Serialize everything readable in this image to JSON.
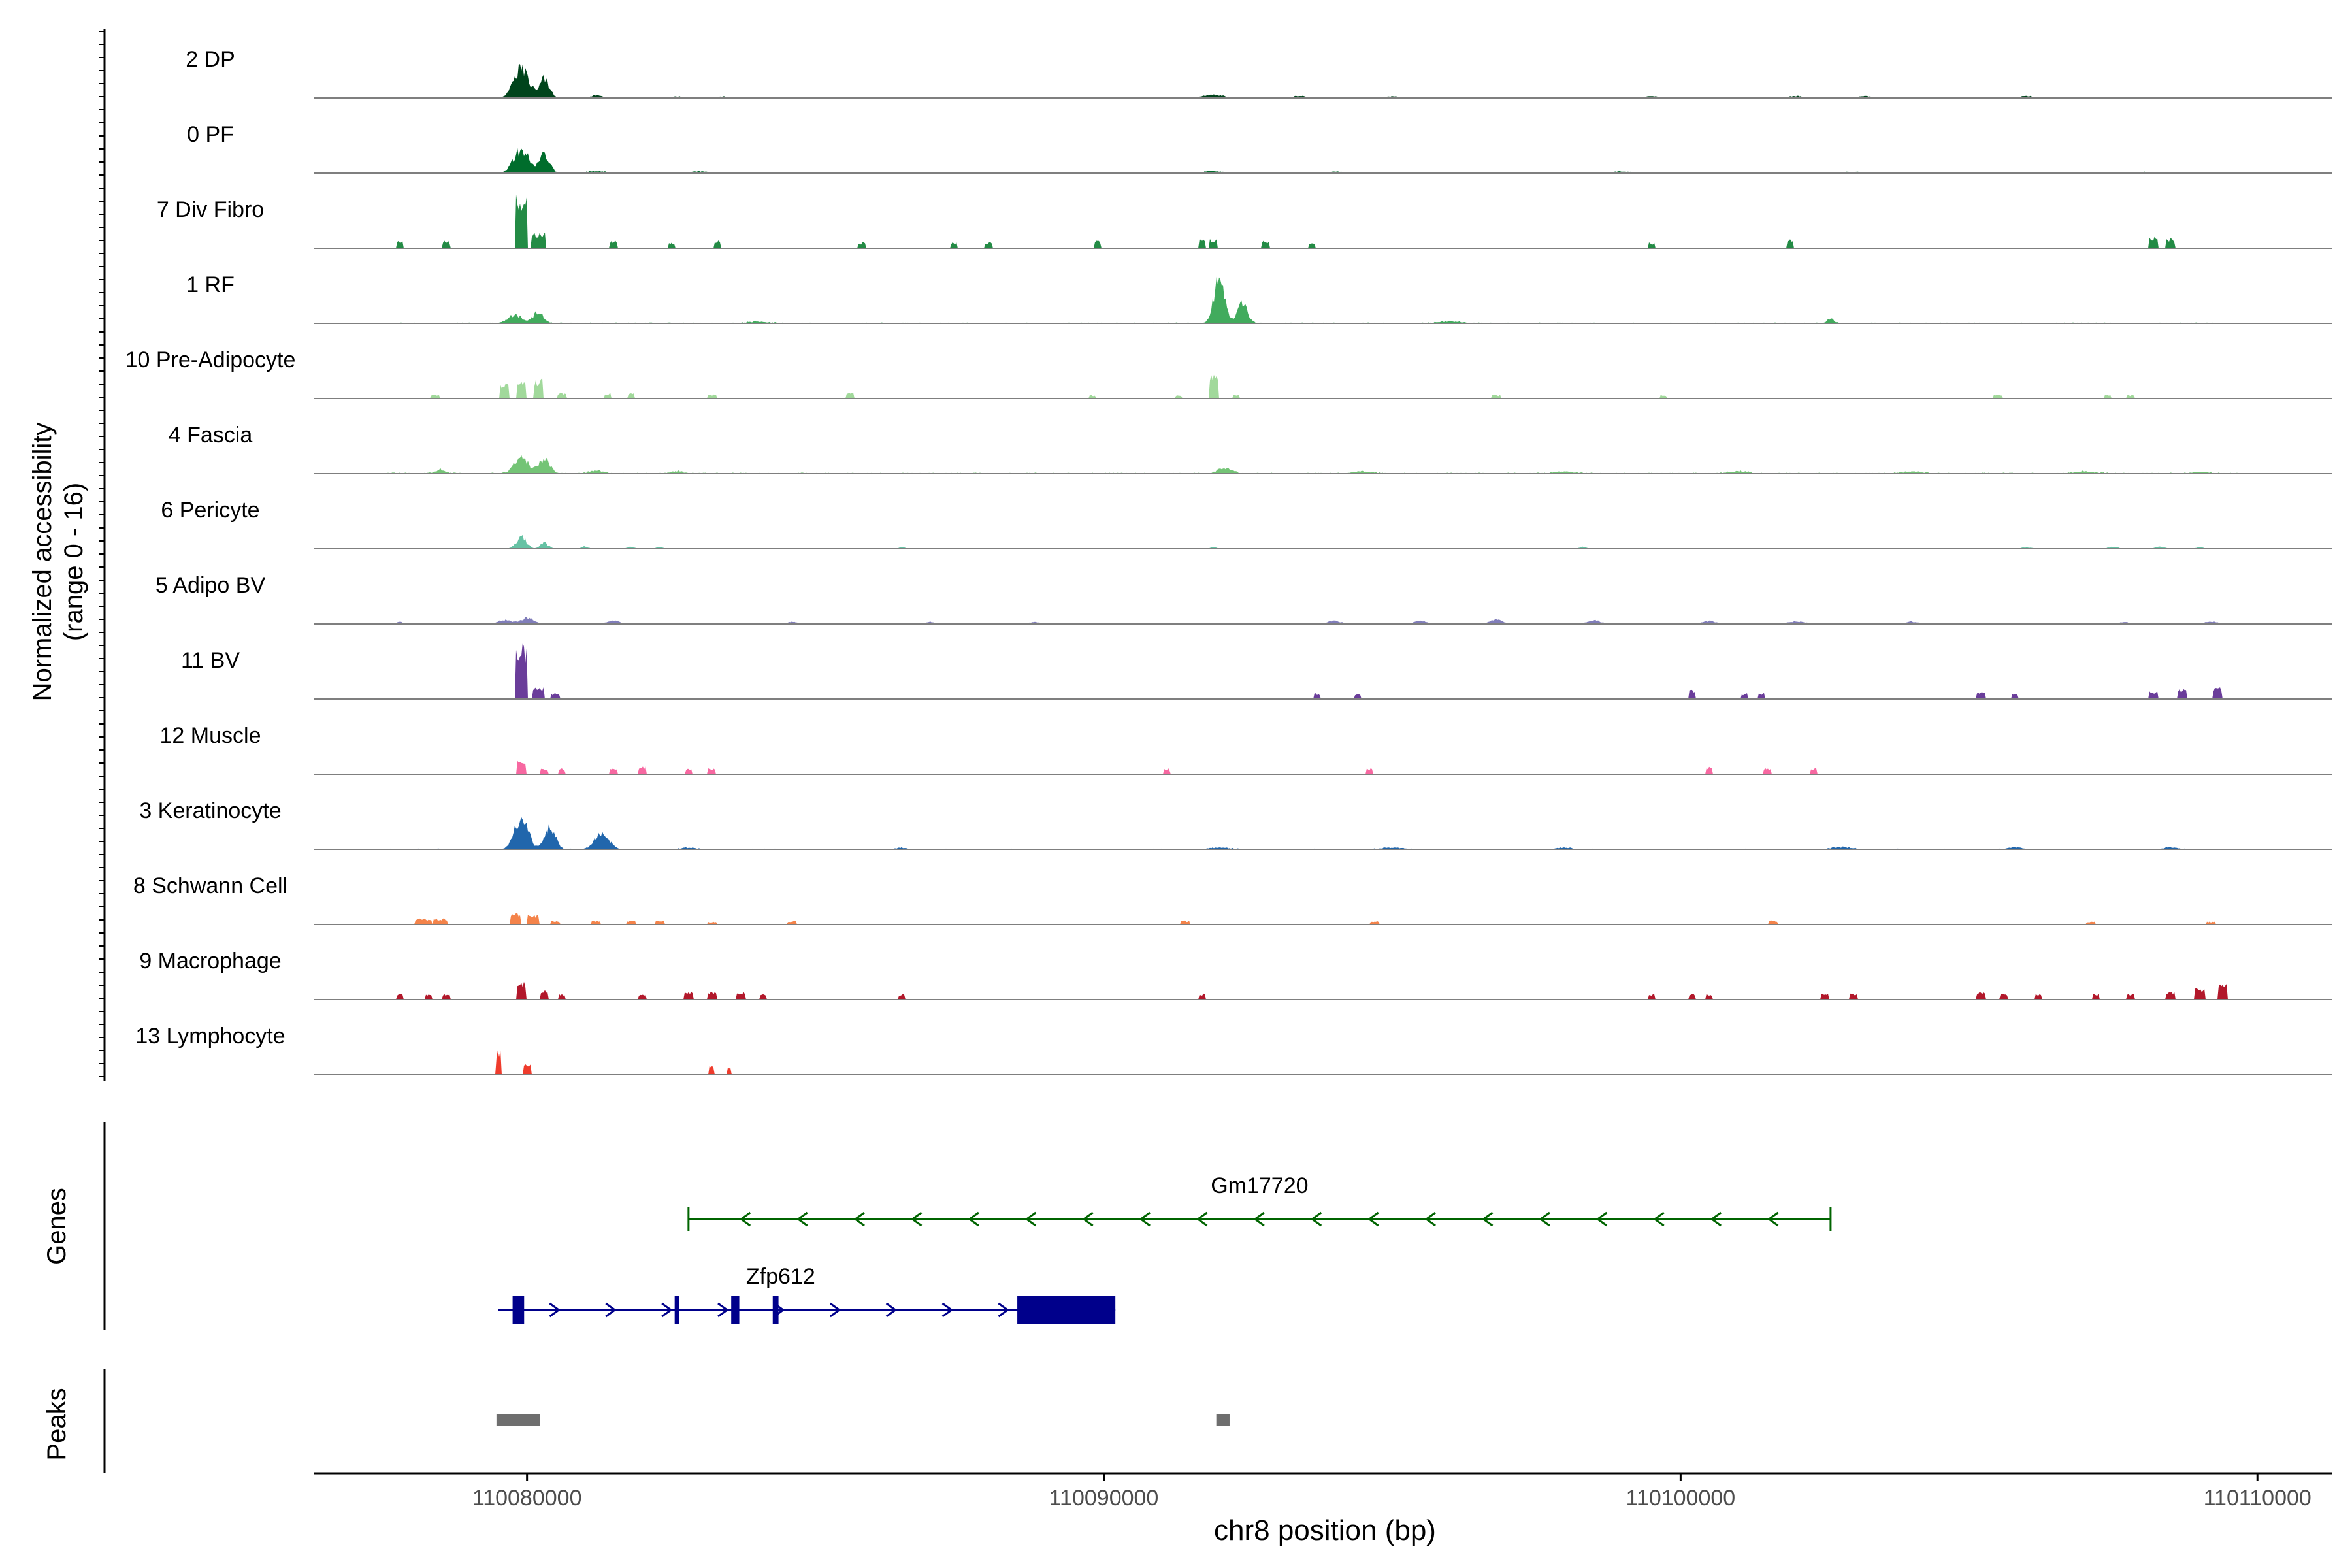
{
  "chart_data": {
    "type": "coverage-track",
    "chromosome": "chr8",
    "xlabel": "chr8 position (bp)",
    "ylabel_line1": "Normalized accessibility",
    "ylabel_line2": "(range 0 - 16)",
    "y_range": [
      0,
      16
    ],
    "x_range": [
      110076300,
      110111300
    ],
    "x_ticks": [
      110080000,
      110090000,
      110100000,
      110110000
    ],
    "x_tick_labels": [
      "110080000",
      "110090000",
      "110100000",
      "110110000"
    ],
    "genes_label": "Genes",
    "peaks_label": "Peaks",
    "tracks": [
      {
        "name": "2 DP",
        "color": "#00441b",
        "kind": "continuous",
        "noise": 0.06,
        "peaks": [
          [
            110079900,
            16,
            220
          ],
          [
            110080300,
            10,
            150
          ],
          [
            110081200,
            1.4,
            150
          ],
          [
            110082600,
            0.9,
            120
          ],
          [
            110083400,
            0.8,
            100
          ],
          [
            110091900,
            1.6,
            300
          ],
          [
            110093400,
            1.0,
            200
          ],
          [
            110095000,
            0.8,
            200
          ],
          [
            110099500,
            0.9,
            200
          ],
          [
            110102000,
            1.0,
            200
          ],
          [
            110103200,
            0.9,
            200
          ],
          [
            110106000,
            1.0,
            200
          ]
        ]
      },
      {
        "name": "0 PF",
        "color": "#006d2c",
        "kind": "continuous",
        "noise": 0.08,
        "peaks": [
          [
            110079900,
            12,
            230
          ],
          [
            110080300,
            9,
            160
          ],
          [
            110081200,
            1.0,
            300
          ],
          [
            110083000,
            0.8,
            300
          ],
          [
            110091900,
            1.0,
            300
          ],
          [
            110094000,
            0.7,
            300
          ],
          [
            110099000,
            0.8,
            300
          ],
          [
            110103000,
            0.6,
            300
          ],
          [
            110108000,
            0.6,
            300
          ]
        ]
      },
      {
        "name": "7 Div Fibro",
        "color": "#238b45",
        "kind": "sparse",
        "noise": 0,
        "peaks": [
          [
            110079900,
            28,
            110
          ],
          [
            110080200,
            8,
            120
          ],
          [
            110077800,
            4,
            60
          ],
          [
            110078600,
            4,
            60
          ],
          [
            110081500,
            4,
            60
          ],
          [
            110082500,
            3,
            60
          ],
          [
            110083300,
            4,
            60
          ],
          [
            110085800,
            3,
            60
          ],
          [
            110087400,
            3,
            60
          ],
          [
            110088000,
            3,
            60
          ],
          [
            110089900,
            4,
            60
          ],
          [
            110091700,
            5,
            60
          ],
          [
            110091900,
            5,
            60
          ],
          [
            110092800,
            4,
            60
          ],
          [
            110093600,
            3,
            60
          ],
          [
            110099500,
            3,
            60
          ],
          [
            110101900,
            5,
            60
          ],
          [
            110108200,
            6,
            80
          ],
          [
            110108500,
            5,
            80
          ]
        ]
      },
      {
        "name": "1 RF",
        "color": "#41ab5d",
        "kind": "continuous",
        "noise": 0.15,
        "peaks": [
          [
            110079800,
            4,
            220
          ],
          [
            110080200,
            6,
            150
          ],
          [
            110092000,
            22,
            160
          ],
          [
            110092400,
            10,
            150
          ],
          [
            110102600,
            2.5,
            100
          ],
          [
            110096000,
            1.0,
            300
          ],
          [
            110084000,
            0.8,
            300
          ]
        ]
      },
      {
        "name": "10 Pre-Adipocyte",
        "color": "#a1d99b",
        "kind": "sparse",
        "noise": 0,
        "peaks": [
          [
            110079600,
            8,
            80
          ],
          [
            110079900,
            10,
            80
          ],
          [
            110080200,
            10,
            80
          ],
          [
            110080600,
            3,
            80
          ],
          [
            110078400,
            2,
            80
          ],
          [
            110081400,
            3,
            60
          ],
          [
            110081800,
            3,
            60
          ],
          [
            110083200,
            2,
            80
          ],
          [
            110085600,
            3,
            60
          ],
          [
            110089800,
            2,
            60
          ],
          [
            110091300,
            2,
            60
          ],
          [
            110091900,
            12,
            80
          ],
          [
            110092300,
            2,
            60
          ],
          [
            110096800,
            2,
            80
          ],
          [
            110099700,
            2,
            60
          ],
          [
            110105500,
            2,
            80
          ],
          [
            110107400,
            2,
            60
          ],
          [
            110107800,
            2,
            60
          ]
        ]
      },
      {
        "name": "4 Fascia",
        "color": "#74c476",
        "kind": "continuous",
        "noise": 0.18,
        "peaks": [
          [
            110079900,
            9,
            200
          ],
          [
            110080300,
            7,
            170
          ],
          [
            110078500,
            2,
            150
          ],
          [
            110081200,
            1.5,
            200
          ],
          [
            110082600,
            1.2,
            200
          ],
          [
            110092100,
            3,
            200
          ],
          [
            110094500,
            1.0,
            300
          ],
          [
            110098000,
            1.0,
            300
          ],
          [
            110101000,
            1.2,
            300
          ],
          [
            110104000,
            1.0,
            300
          ],
          [
            110107000,
            1.0,
            300
          ],
          [
            110109000,
            0.8,
            300
          ]
        ]
      },
      {
        "name": "6 Pericyte",
        "color": "#66c2a4",
        "kind": "continuous",
        "noise": 0,
        "peaks": [
          [
            110079900,
            6,
            150
          ],
          [
            110080300,
            3,
            120
          ],
          [
            110081000,
            1.2,
            100
          ],
          [
            110081800,
            1.0,
            100
          ],
          [
            110082300,
            0.8,
            100
          ],
          [
            110086500,
            0.8,
            100
          ],
          [
            110091900,
            0.8,
            100
          ],
          [
            110098300,
            1.0,
            100
          ],
          [
            110106000,
            0.8,
            150
          ],
          [
            110107500,
            1.0,
            150
          ],
          [
            110108300,
            1.0,
            150
          ],
          [
            110109000,
            0.8,
            100
          ]
        ]
      },
      {
        "name": "5 Adipo BV",
        "color": "#807dba",
        "kind": "continuous",
        "noise": 0,
        "peaks": [
          [
            110079600,
            2,
            200
          ],
          [
            110080000,
            3,
            200
          ],
          [
            110077800,
            1.0,
            100
          ],
          [
            110081500,
            1.5,
            200
          ],
          [
            110084600,
            1.0,
            150
          ],
          [
            110087000,
            1.0,
            150
          ],
          [
            110088800,
            1.0,
            150
          ],
          [
            110094000,
            1.5,
            200
          ],
          [
            110095500,
            1.5,
            200
          ],
          [
            110096800,
            2.0,
            200
          ],
          [
            110098500,
            1.8,
            200
          ],
          [
            110100500,
            1.5,
            200
          ],
          [
            110102000,
            1.2,
            300
          ],
          [
            110104000,
            1.2,
            200
          ],
          [
            110107700,
            1.0,
            150
          ],
          [
            110109200,
            1.2,
            200
          ]
        ]
      },
      {
        "name": "11 BV",
        "color": "#6a3d9a",
        "kind": "sparse",
        "noise": 0,
        "peaks": [
          [
            110079900,
            28,
            110
          ],
          [
            110080200,
            6,
            100
          ],
          [
            110080500,
            3,
            80
          ],
          [
            110093700,
            3,
            60
          ],
          [
            110094400,
            3,
            60
          ],
          [
            110100200,
            5,
            60
          ],
          [
            110101100,
            3,
            60
          ],
          [
            110101400,
            3,
            60
          ],
          [
            110105200,
            4,
            80
          ],
          [
            110105800,
            3,
            60
          ],
          [
            110108200,
            4,
            80
          ],
          [
            110108700,
            5,
            80
          ],
          [
            110109300,
            6,
            80
          ]
        ]
      },
      {
        "name": "12 Muscle",
        "color": "#f768a1",
        "kind": "sparse",
        "noise": 0,
        "peaks": [
          [
            110079900,
            8,
            80
          ],
          [
            110080300,
            3,
            60
          ],
          [
            110080600,
            3,
            60
          ],
          [
            110081500,
            3,
            60
          ],
          [
            110082000,
            4,
            60
          ],
          [
            110082800,
            3,
            60
          ],
          [
            110083200,
            3,
            60
          ],
          [
            110091100,
            3,
            60
          ],
          [
            110094600,
            3,
            60
          ],
          [
            110100500,
            4,
            60
          ],
          [
            110101500,
            3,
            60
          ],
          [
            110102300,
            3,
            60
          ]
        ]
      },
      {
        "name": "3 Keratinocyte",
        "color": "#2166ac",
        "kind": "continuous",
        "noise": 0.12,
        "peaks": [
          [
            110079900,
            16,
            200
          ],
          [
            110080400,
            11,
            160
          ],
          [
            110081300,
            9,
            200
          ],
          [
            110082800,
            0.8,
            200
          ],
          [
            110086500,
            0.8,
            150
          ],
          [
            110092000,
            0.8,
            300
          ],
          [
            110095000,
            0.8,
            300
          ],
          [
            110098000,
            0.8,
            200
          ],
          [
            110102800,
            1.0,
            300
          ],
          [
            110105800,
            1.0,
            200
          ],
          [
            110108500,
            1.0,
            200
          ]
        ]
      },
      {
        "name": "8 Schwann Cell",
        "color": "#f4834a",
        "kind": "sparse",
        "noise": 0,
        "peaks": [
          [
            110078200,
            3,
            150
          ],
          [
            110078500,
            3,
            120
          ],
          [
            110079800,
            6,
            100
          ],
          [
            110080100,
            5,
            100
          ],
          [
            110080500,
            2,
            80
          ],
          [
            110081200,
            2,
            80
          ],
          [
            110081800,
            2,
            80
          ],
          [
            110082300,
            2,
            80
          ],
          [
            110083200,
            1.5,
            80
          ],
          [
            110084600,
            2,
            80
          ],
          [
            110091400,
            2,
            80
          ],
          [
            110094700,
            2,
            80
          ],
          [
            110101600,
            2,
            80
          ],
          [
            110107100,
            1.5,
            80
          ],
          [
            110109200,
            1.5,
            80
          ]
        ]
      },
      {
        "name": "9 Macrophage",
        "color": "#b2182b",
        "kind": "sparse",
        "noise": 0,
        "peaks": [
          [
            110077800,
            3,
            60
          ],
          [
            110078300,
            3,
            60
          ],
          [
            110078600,
            3,
            60
          ],
          [
            110079900,
            10,
            80
          ],
          [
            110080300,
            5,
            60
          ],
          [
            110080600,
            3,
            60
          ],
          [
            110082000,
            3,
            60
          ],
          [
            110082800,
            4,
            80
          ],
          [
            110083200,
            4,
            80
          ],
          [
            110083700,
            4,
            80
          ],
          [
            110084100,
            3,
            60
          ],
          [
            110086500,
            3,
            60
          ],
          [
            110091700,
            3,
            60
          ],
          [
            110099500,
            3,
            60
          ],
          [
            110100200,
            3,
            60
          ],
          [
            110100500,
            3,
            60
          ],
          [
            110102500,
            3,
            60
          ],
          [
            110103000,
            3,
            60
          ],
          [
            110105200,
            4,
            80
          ],
          [
            110105600,
            3,
            60
          ],
          [
            110106200,
            3,
            60
          ],
          [
            110107200,
            3,
            60
          ],
          [
            110107800,
            3,
            60
          ],
          [
            110108500,
            4,
            80
          ],
          [
            110109000,
            6,
            80
          ],
          [
            110109400,
            8,
            80
          ]
        ]
      },
      {
        "name": "13 Lymphocyte",
        "color": "#ef3b2c",
        "kind": "sparse",
        "noise": 0,
        "peaks": [
          [
            110079500,
            14,
            50
          ],
          [
            110080000,
            6,
            70
          ],
          [
            110083200,
            5,
            40
          ],
          [
            110083500,
            5,
            40
          ]
        ]
      }
    ],
    "genes": [
      {
        "name": "Gm17720",
        "color": "#006400",
        "start": 110082800,
        "end": 110102600,
        "strand": "-",
        "exons": []
      },
      {
        "name": "Zfp612",
        "color": "#00008b",
        "start": 110079500,
        "end": 110090200,
        "strand": "+",
        "exons": [
          [
            110079750,
            110079950
          ],
          [
            110082560,
            110082640
          ],
          [
            110083540,
            110083680
          ],
          [
            110084260,
            110084360
          ],
          [
            110088500,
            110090200
          ]
        ]
      }
    ],
    "peaks": [
      [
        110079470,
        110080230
      ],
      [
        110091950,
        110092180
      ]
    ]
  }
}
